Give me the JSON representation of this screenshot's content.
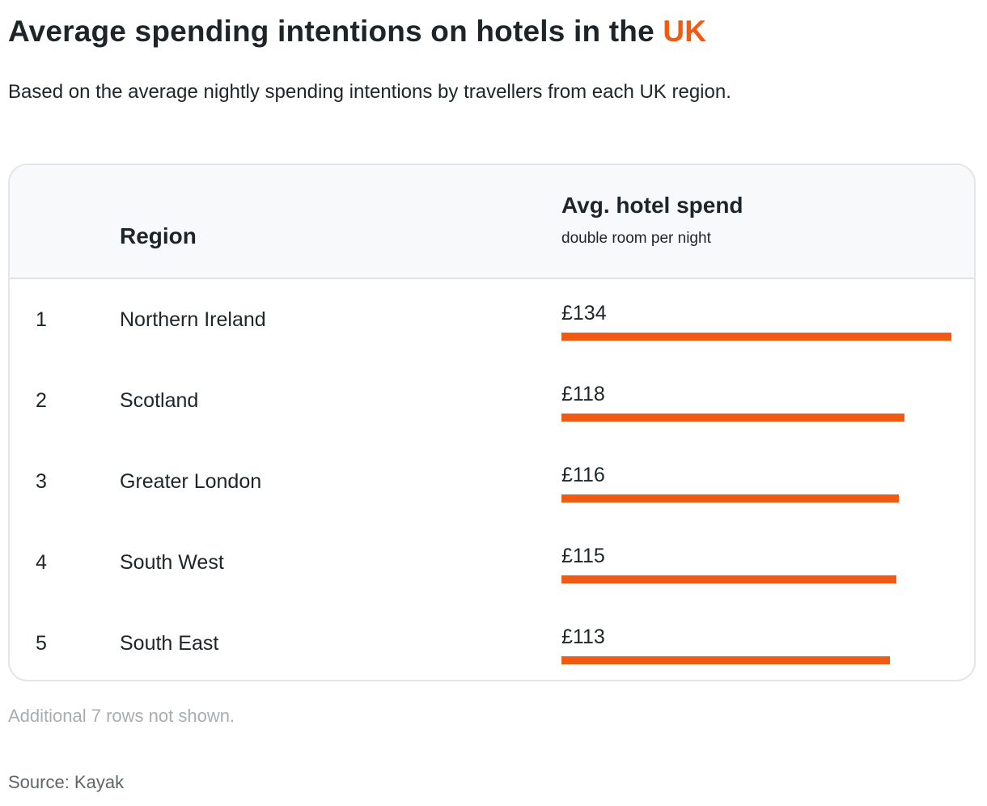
{
  "title": {
    "text": "Average spending intentions on hotels in the",
    "highlight": "UK",
    "highlight_color": "#f05a12"
  },
  "subtitle": "Based on the average nightly spending intentions by travellers from each UK region.",
  "table": {
    "header": {
      "region": "Region",
      "spend": "Avg. hotel spend",
      "spend_sub": "double room per night"
    },
    "note": "Additional 7 rows not shown."
  },
  "source": "Source: Kayak",
  "chart_data": {
    "type": "bar",
    "title": "Average spending intentions on hotels in the UK",
    "orientation": "horizontal",
    "bar_color": "#f05a12",
    "unit": "£",
    "categories": [
      "Northern Ireland",
      "Scotland",
      "Greater London",
      "South West",
      "South East"
    ],
    "ranks": [
      "1",
      "2",
      "3",
      "4",
      "5"
    ],
    "labels": [
      "£134",
      "£118",
      "£116",
      "£115",
      "£113"
    ],
    "values": [
      134,
      118,
      116,
      115,
      113
    ],
    "xlim": [
      0,
      134
    ]
  }
}
